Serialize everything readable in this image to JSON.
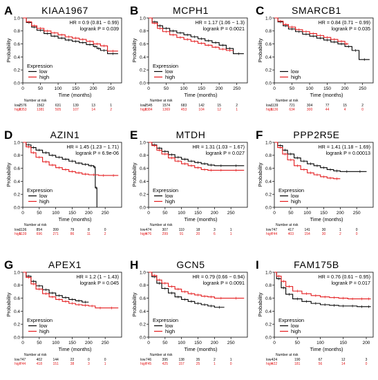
{
  "chart_data": [
    {
      "type": "line",
      "panel": "A",
      "title": "KIAA1967",
      "xlabel": "Time (months)",
      "ylabel": "Probability",
      "xlim": [
        0,
        280
      ],
      "ylim": [
        0,
        1
      ],
      "xticks": [
        0,
        50,
        100,
        150,
        200,
        250
      ],
      "yticks": [
        "0.0",
        "0.2",
        "0.4",
        "0.6",
        "0.8",
        "1.0"
      ],
      "hr_text": "HR = 0.9 (0.81 − 0.99)",
      "logrank_text": "logrank P = 0.039",
      "legend_title": "Expression",
      "risk_title": "Number at risk",
      "series": [
        {
          "name": "low",
          "color": "#000000",
          "x": [
            0,
            10,
            25,
            40,
            60,
            80,
            100,
            120,
            140,
            160,
            180,
            200,
            210,
            220,
            240,
            270
          ],
          "y": [
            1.0,
            0.93,
            0.86,
            0.81,
            0.76,
            0.72,
            0.69,
            0.66,
            0.64,
            0.62,
            0.59,
            0.56,
            0.53,
            0.5,
            0.45,
            0.45
          ],
          "risk": [
            "2576",
            "1562",
            "631",
            "139",
            "13",
            "1"
          ]
        },
        {
          "name": "high",
          "color": "#e41a1c",
          "x": [
            0,
            10,
            25,
            40,
            60,
            80,
            100,
            120,
            140,
            160,
            180,
            200,
            220,
            240,
            270
          ],
          "y": [
            1.0,
            0.94,
            0.88,
            0.84,
            0.8,
            0.77,
            0.74,
            0.71,
            0.69,
            0.67,
            0.64,
            0.6,
            0.57,
            0.49,
            0.49
          ],
          "risk": [
            "2353",
            "1381",
            "505",
            "107",
            "14",
            "2"
          ]
        }
      ]
    },
    {
      "type": "line",
      "panel": "B",
      "title": "MCPH1",
      "xlabel": "Time (months)",
      "ylabel": "Probability",
      "xlim": [
        0,
        280
      ],
      "ylim": [
        0,
        1
      ],
      "xticks": [
        0,
        50,
        100,
        150,
        200,
        250
      ],
      "yticks": [
        "0.0",
        "0.2",
        "0.4",
        "0.6",
        "0.8",
        "1.0"
      ],
      "hr_text": "HR = 1.17 (1.06 − 1.3)",
      "logrank_text": "logrank P = 0.0021",
      "legend_title": "Expression",
      "risk_title": "Number at risk",
      "series": [
        {
          "name": "low",
          "color": "#000000",
          "x": [
            0,
            10,
            25,
            40,
            60,
            80,
            100,
            120,
            140,
            160,
            180,
            200,
            220,
            240,
            270
          ],
          "y": [
            1.0,
            0.94,
            0.88,
            0.84,
            0.8,
            0.77,
            0.74,
            0.71,
            0.68,
            0.65,
            0.62,
            0.58,
            0.53,
            0.45,
            0.45
          ],
          "risk": [
            "2545",
            "1574",
            "683",
            "142",
            "15",
            "2"
          ]
        },
        {
          "name": "high",
          "color": "#e41a1c",
          "x": [
            0,
            10,
            25,
            40,
            60,
            80,
            100,
            120,
            140,
            160,
            180,
            200,
            220,
            240
          ],
          "y": [
            1.0,
            0.92,
            0.84,
            0.79,
            0.74,
            0.7,
            0.67,
            0.64,
            0.61,
            0.58,
            0.55,
            0.52,
            0.5,
            0.5
          ],
          "risk": [
            "2384",
            "1369",
            "453",
            "104",
            "12",
            "1"
          ]
        }
      ]
    },
    {
      "type": "line",
      "panel": "C",
      "title": "SMARCB1",
      "xlabel": "Time (months)",
      "ylabel": "Probability",
      "xlim": [
        0,
        280
      ],
      "ylim": [
        0,
        1
      ],
      "xticks": [
        0,
        50,
        100,
        150,
        200,
        250
      ],
      "yticks": [
        "0.0",
        "0.2",
        "0.4",
        "0.6",
        "0.8",
        "1.0"
      ],
      "hr_text": "HR = 0.84 (0.71 − 0.99)",
      "logrank_text": "logrank P = 0.035",
      "legend_title": "",
      "risk_title": "Number at risk",
      "series": [
        {
          "name": "low",
          "color": "#000000",
          "x": [
            0,
            10,
            25,
            40,
            60,
            80,
            100,
            120,
            140,
            160,
            180,
            200,
            220,
            240,
            270
          ],
          "y": [
            1.0,
            0.94,
            0.88,
            0.83,
            0.79,
            0.75,
            0.72,
            0.69,
            0.66,
            0.63,
            0.6,
            0.56,
            0.5,
            0.36,
            0.36
          ],
          "risk": [
            "1139",
            "721",
            "304",
            "77",
            "15",
            "2"
          ]
        },
        {
          "name": "high",
          "color": "#e41a1c",
          "x": [
            0,
            10,
            25,
            40,
            60,
            80,
            100,
            120,
            140,
            160,
            180,
            200,
            210
          ],
          "y": [
            1.0,
            0.95,
            0.9,
            0.86,
            0.82,
            0.79,
            0.76,
            0.73,
            0.7,
            0.67,
            0.64,
            0.6,
            0.6
          ],
          "risk": [
            "1136",
            "634",
            "300",
            "44",
            "4",
            "0"
          ]
        }
      ]
    },
    {
      "type": "line",
      "panel": "D",
      "title": "AZIN1",
      "xlabel": "Time (months)",
      "ylabel": "Probability",
      "xlim": [
        0,
        300
      ],
      "ylim": [
        0,
        1
      ],
      "xticks": [
        0,
        50,
        100,
        150,
        200,
        250
      ],
      "yticks": [
        "0.0",
        "0.2",
        "0.4",
        "0.6",
        "0.8",
        "1.0"
      ],
      "hr_text": "HR = 1.45 (1.23 − 1.71)",
      "logrank_text": "logrank P = 6.9e-06",
      "legend_title": "Expression",
      "risk_title": "Number at risk",
      "series": [
        {
          "name": "low",
          "color": "#000000",
          "x": [
            0,
            10,
            25,
            40,
            60,
            80,
            100,
            120,
            140,
            160,
            180,
            200,
            215,
            220,
            225
          ],
          "y": [
            1.0,
            0.96,
            0.92,
            0.88,
            0.84,
            0.8,
            0.77,
            0.74,
            0.71,
            0.68,
            0.66,
            0.64,
            0.62,
            0.3,
            0.0
          ],
          "risk": [
            "1136",
            "854",
            "399",
            "79",
            "8",
            "0"
          ]
        },
        {
          "name": "high",
          "color": "#e41a1c",
          "x": [
            0,
            10,
            25,
            40,
            60,
            80,
            100,
            120,
            140,
            160,
            180,
            200,
            230,
            260,
            290
          ],
          "y": [
            1.0,
            0.93,
            0.84,
            0.77,
            0.7,
            0.65,
            0.61,
            0.58,
            0.55,
            0.53,
            0.51,
            0.5,
            0.49,
            0.49,
            0.49
          ],
          "risk": [
            "1139",
            "696",
            "271",
            "86",
            "11",
            "2"
          ]
        }
      ]
    },
    {
      "type": "line",
      "panel": "E",
      "title": "MTDH",
      "xlabel": "Time (months)",
      "ylabel": "Probability",
      "xlim": [
        0,
        300
      ],
      "ylim": [
        0,
        1
      ],
      "xticks": [
        0,
        50,
        100,
        150,
        200,
        250
      ],
      "yticks": [
        "0.0",
        "0.2",
        "0.4",
        "0.6",
        "0.8",
        "1.0"
      ],
      "hr_text": "HR = 1.31 (1.03 − 1.67)",
      "logrank_text": "logrank P = 0.027",
      "legend_title": "Expression",
      "risk_title": "Number at risk",
      "series": [
        {
          "name": "low",
          "color": "#000000",
          "x": [
            0,
            10,
            25,
            40,
            60,
            80,
            100,
            120,
            140,
            160,
            180,
            200,
            240,
            290
          ],
          "y": [
            1.0,
            0.96,
            0.91,
            0.86,
            0.81,
            0.77,
            0.74,
            0.71,
            0.69,
            0.67,
            0.65,
            0.64,
            0.64,
            0.64
          ],
          "risk": [
            "474",
            "307",
            "110",
            "18",
            "3",
            "1"
          ]
        },
        {
          "name": "high",
          "color": "#e41a1c",
          "x": [
            0,
            10,
            25,
            40,
            60,
            80,
            100,
            120,
            140,
            160,
            180,
            200,
            240,
            290
          ],
          "y": [
            1.0,
            0.95,
            0.88,
            0.82,
            0.76,
            0.71,
            0.67,
            0.64,
            0.61,
            0.58,
            0.57,
            0.57,
            0.57,
            0.57
          ],
          "risk": [
            "476",
            "299",
            "91",
            "20",
            "6",
            "1"
          ]
        }
      ]
    },
    {
      "type": "line",
      "panel": "F",
      "title": "PPP2R5E",
      "xlabel": "Time (months)",
      "ylabel": "Probability",
      "xlim": [
        0,
        300
      ],
      "ylim": [
        0,
        1
      ],
      "xticks": [
        0,
        50,
        100,
        150,
        200,
        250
      ],
      "yticks": [
        "0.0",
        "0.2",
        "0.4",
        "0.6",
        "0.8",
        "1.0"
      ],
      "hr_text": "HR = 1.41 (1.18 − 1.69)",
      "logrank_text": "logrank P = 0.00013",
      "legend_title": "Expression",
      "risk_title": "Number at risk",
      "series": [
        {
          "name": "low",
          "color": "#000000",
          "x": [
            0,
            10,
            25,
            40,
            60,
            80,
            100,
            120,
            140,
            160,
            180,
            200,
            240,
            280
          ],
          "y": [
            1.0,
            0.95,
            0.88,
            0.82,
            0.76,
            0.71,
            0.67,
            0.64,
            0.61,
            0.58,
            0.56,
            0.55,
            0.55,
            0.55
          ],
          "risk": [
            "747",
            "417",
            "141",
            "30",
            "1",
            "0"
          ]
        },
        {
          "name": "high",
          "color": "#e41a1c",
          "x": [
            0,
            10,
            25,
            40,
            60,
            80,
            100,
            120,
            140,
            160,
            180,
            200
          ],
          "y": [
            1.0,
            0.92,
            0.82,
            0.73,
            0.64,
            0.58,
            0.53,
            0.5,
            0.47,
            0.45,
            0.44,
            0.44
          ],
          "risk": [
            "744",
            "403",
            "154",
            "30",
            "2",
            "0"
          ]
        }
      ]
    },
    {
      "type": "line",
      "panel": "G",
      "title": "APEX1",
      "xlabel": "Time (months)",
      "ylabel": "Probability",
      "xlim": [
        0,
        300
      ],
      "ylim": [
        0,
        1
      ],
      "xticks": [
        0,
        50,
        100,
        150,
        200,
        250
      ],
      "yticks": [
        "0.0",
        "0.2",
        "0.4",
        "0.6",
        "0.8",
        "1.0"
      ],
      "hr_text": "HR = 1.2 (1 − 1.43)",
      "logrank_text": "logrank P = 0.045",
      "legend_title": "Expression",
      "risk_title": "Number at risk",
      "series": [
        {
          "name": "low",
          "color": "#000000",
          "x": [
            0,
            10,
            25,
            40,
            60,
            80,
            100,
            120,
            140,
            160,
            180,
            200
          ],
          "y": [
            1.0,
            0.94,
            0.86,
            0.79,
            0.73,
            0.68,
            0.64,
            0.61,
            0.58,
            0.56,
            0.54,
            0.54
          ],
          "risk": [
            "747",
            "402",
            "144",
            "22",
            "0",
            "0"
          ]
        },
        {
          "name": "high",
          "color": "#e41a1c",
          "x": [
            0,
            10,
            25,
            40,
            60,
            80,
            100,
            120,
            140,
            160,
            180,
            200,
            220,
            250,
            290
          ],
          "y": [
            1.0,
            0.92,
            0.82,
            0.74,
            0.67,
            0.62,
            0.58,
            0.55,
            0.52,
            0.5,
            0.49,
            0.48,
            0.45,
            0.45,
            0.45
          ],
          "risk": [
            "744",
            "418",
            "151",
            "38",
            "3",
            "1"
          ]
        }
      ]
    },
    {
      "type": "line",
      "panel": "H",
      "title": "GCN5",
      "xlabel": "Time (months)",
      "ylabel": "Probability",
      "xlim": [
        0,
        300
      ],
      "ylim": [
        0,
        1
      ],
      "xticks": [
        0,
        50,
        100,
        150,
        200,
        250
      ],
      "yticks": [
        "0.0",
        "0.2",
        "0.4",
        "0.6",
        "0.8",
        "1.0"
      ],
      "hr_text": "HR = 0.79 (0.66 − 0.94)",
      "logrank_text": "logrank P = 0.0091",
      "legend_title": "Expression",
      "risk_title": "Number at risk",
      "series": [
        {
          "name": "low",
          "color": "#000000",
          "x": [
            0,
            10,
            25,
            40,
            60,
            80,
            100,
            120,
            140,
            160,
            180,
            200,
            230
          ],
          "y": [
            1.0,
            0.93,
            0.83,
            0.75,
            0.68,
            0.62,
            0.58,
            0.55,
            0.52,
            0.5,
            0.48,
            0.46,
            0.46
          ],
          "risk": [
            "746",
            "395",
            "138",
            "35",
            "2",
            "1"
          ]
        },
        {
          "name": "high",
          "color": "#e41a1c",
          "x": [
            0,
            10,
            25,
            40,
            60,
            80,
            100,
            120,
            140,
            160,
            180,
            200,
            240,
            290
          ],
          "y": [
            1.0,
            0.95,
            0.88,
            0.83,
            0.78,
            0.74,
            0.7,
            0.67,
            0.65,
            0.63,
            0.62,
            0.6,
            0.6,
            0.6
          ],
          "risk": [
            "745",
            "425",
            "157",
            "25",
            "1",
            "0"
          ]
        }
      ]
    },
    {
      "type": "line",
      "panel": "I",
      "title": "FAM175B",
      "xlabel": "Time (months)",
      "ylabel": "Probability",
      "xlim": [
        0,
        215
      ],
      "ylim": [
        0,
        1
      ],
      "xticks": [
        0,
        50,
        100,
        150,
        200
      ],
      "yticks": [
        "0.0",
        "0.2",
        "0.4",
        "0.6",
        "0.8",
        "1.0"
      ],
      "hr_text": "HR = 0.76 (0.61 − 0.95)",
      "logrank_text": "logrank P = 0.017",
      "legend_title": "Expression",
      "risk_title": "Number at risk",
      "series": [
        {
          "name": "low",
          "color": "#000000",
          "x": [
            0,
            5,
            15,
            25,
            40,
            60,
            80,
            100,
            120,
            140,
            160,
            180,
            200,
            210
          ],
          "y": [
            1.0,
            0.9,
            0.76,
            0.66,
            0.59,
            0.55,
            0.52,
            0.5,
            0.49,
            0.48,
            0.48,
            0.47,
            0.47,
            0.47
          ],
          "risk": [
            "424",
            "190",
            "67",
            "12",
            "3"
          ]
        },
        {
          "name": "high",
          "color": "#e41a1c",
          "x": [
            0,
            5,
            15,
            25,
            40,
            60,
            80,
            100,
            120,
            140,
            160,
            180,
            200,
            210
          ],
          "y": [
            1.0,
            0.94,
            0.86,
            0.78,
            0.71,
            0.67,
            0.64,
            0.62,
            0.61,
            0.6,
            0.59,
            0.59,
            0.59,
            0.59
          ],
          "risk": [
            "422",
            "181",
            "56",
            "14",
            "0"
          ]
        }
      ]
    }
  ]
}
